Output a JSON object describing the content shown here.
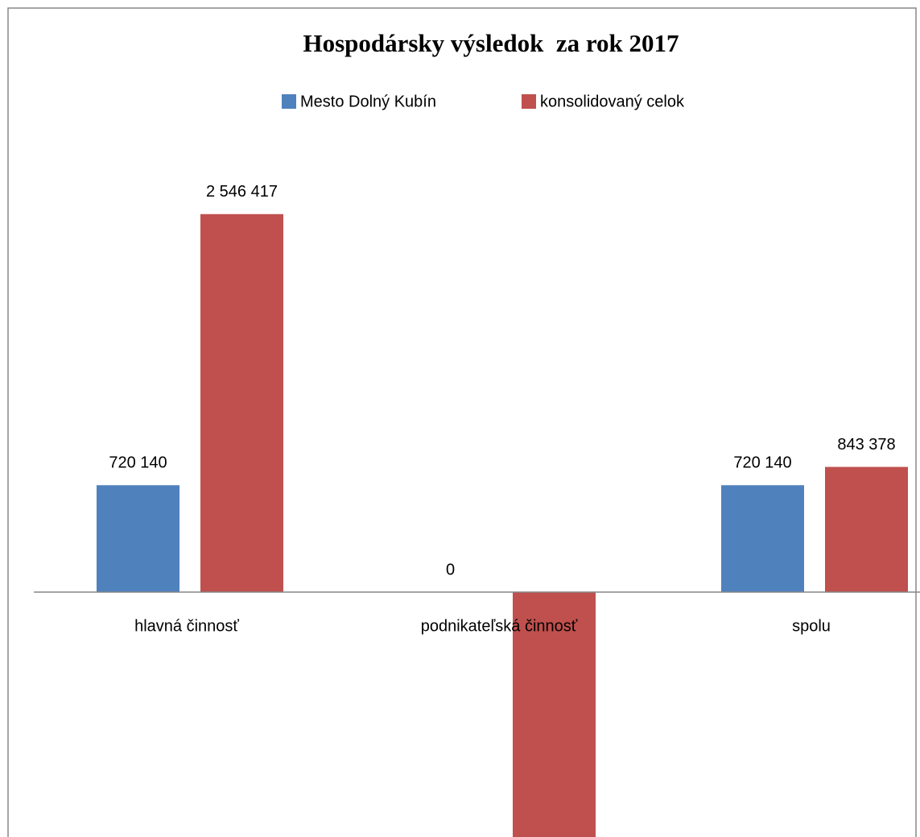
{
  "chart_data": {
    "type": "bar",
    "title": "Hospodársky výsledok  za rok 2017",
    "categories": [
      "hlavná činnosť",
      "podnikateľská činnosť",
      "spolu"
    ],
    "series": [
      {
        "name": "Mesto Dolný Kubín",
        "color": "#4f81bd",
        "values": [
          720140,
          0,
          720140
        ],
        "value_labels": [
          "720 140",
          "0",
          "720 140"
        ]
      },
      {
        "name": "konsolidovaný celok",
        "color": "#c0504d",
        "values": [
          2546417,
          -1703039,
          843378
        ],
        "value_labels": [
          "2 546 417",
          null,
          "843 378"
        ]
      }
    ],
    "ylim": [
      -1650000,
      3050000
    ],
    "legend": "top"
  }
}
